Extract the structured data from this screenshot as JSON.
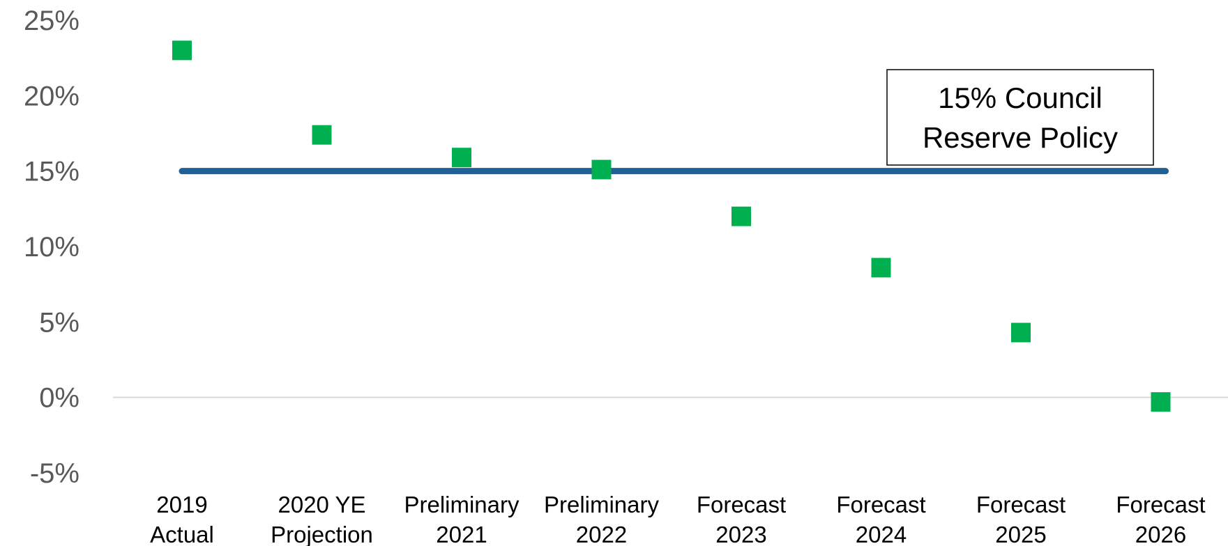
{
  "chart_data": {
    "type": "scatter",
    "categories": [
      [
        "2019",
        "Actual"
      ],
      [
        "2020 YE",
        "Projection"
      ],
      [
        "Preliminary",
        "2021"
      ],
      [
        "Preliminary",
        "2022"
      ],
      [
        "Forecast",
        "2023"
      ],
      [
        "Forecast",
        "2024"
      ],
      [
        "Forecast",
        "2025"
      ],
      [
        "Forecast",
        "2026"
      ]
    ],
    "series": [
      {
        "values": [
          23.0,
          17.4,
          15.9,
          15.1,
          12.0,
          8.6,
          4.3,
          -0.3
        ],
        "color": "#00b050",
        "marker": "square"
      }
    ],
    "reference_line": {
      "value": 15,
      "color": "#1f6096"
    },
    "annotation": {
      "lines": [
        "15% Council",
        "Reserve Policy"
      ]
    },
    "yaxis": {
      "ticks": [
        25,
        20,
        15,
        10,
        5,
        0,
        -5
      ],
      "tick_labels": [
        "25%",
        "20%",
        "15%",
        "10%",
        "5%",
        "0%",
        "-5%"
      ],
      "ylim": [
        -5,
        25
      ]
    },
    "title": "",
    "xlabel": "",
    "ylabel": "",
    "grid": false,
    "legend": "none"
  }
}
